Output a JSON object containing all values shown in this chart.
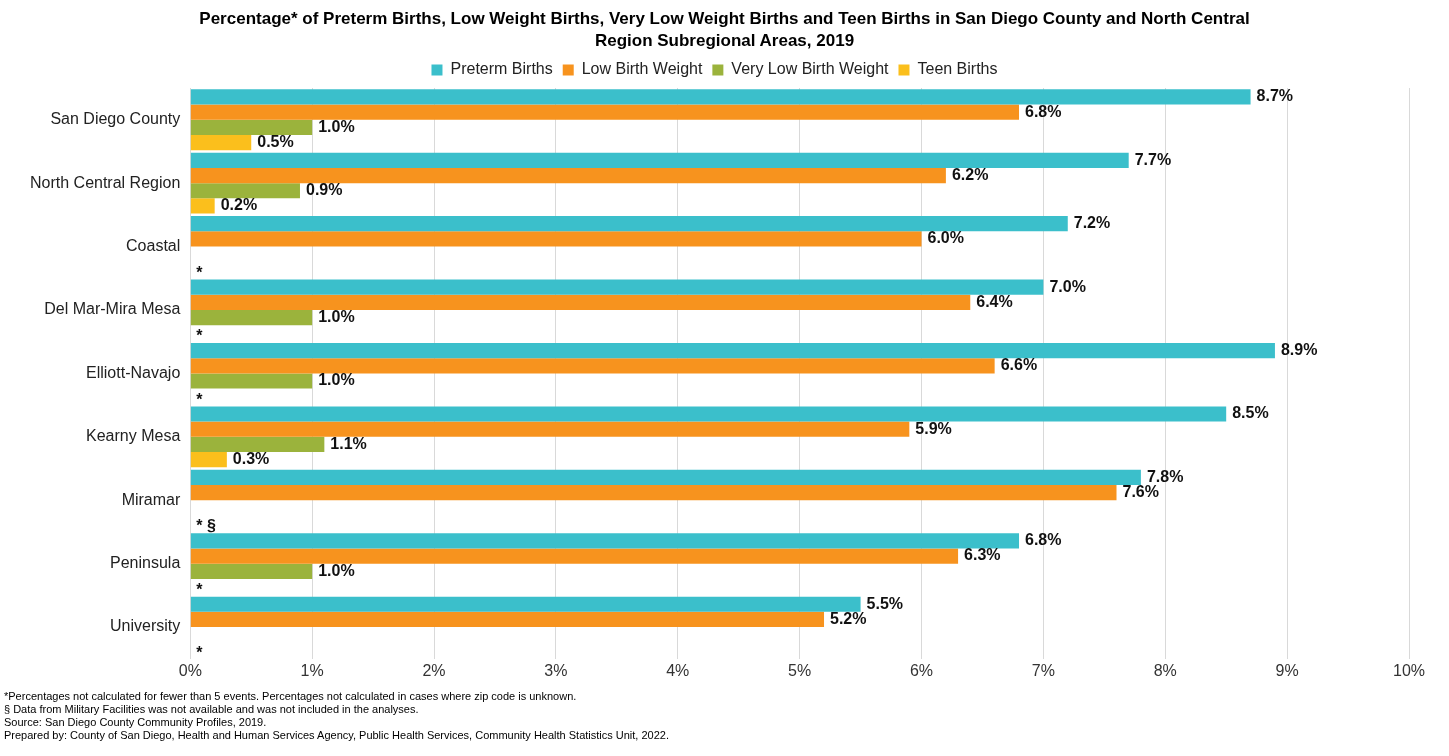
{
  "chart_data": {
    "type": "bar",
    "orientation": "horizontal",
    "title": "Percentage* of Preterm Births, Low Weight Births, Very Low Weight Births and Teen Births in San Diego County and North Central Region Subregional Areas, 2019",
    "categories": [
      "San Diego County",
      "North Central Region",
      "Coastal",
      "Del Mar-Mira Mesa",
      "Elliott-Navajo",
      "Kearny Mesa",
      "Miramar",
      "Peninsula",
      "University"
    ],
    "series": [
      {
        "name": "Preterm Births",
        "color": "#3bbfcb",
        "values": [
          8.7,
          7.7,
          7.2,
          7.0,
          8.9,
          8.5,
          7.8,
          6.8,
          5.5
        ],
        "value_labels": [
          "8.7%",
          "7.7%",
          "7.2%",
          "7.0%",
          "8.9%",
          "8.5%",
          "7.8%",
          "6.8%",
          "5.5%"
        ]
      },
      {
        "name": "Low Birth Weight",
        "color": "#f7931e",
        "values": [
          6.8,
          6.2,
          6.0,
          6.4,
          6.6,
          5.9,
          7.6,
          6.3,
          5.2
        ],
        "value_labels": [
          "6.8%",
          "6.2%",
          "6.0%",
          "6.4%",
          "6.6%",
          "5.9%",
          "7.6%",
          "6.3%",
          "5.2%"
        ]
      },
      {
        "name": "Very Low Birth Weight",
        "color": "#9bb33c",
        "values": [
          1.0,
          0.9,
          null,
          1.0,
          1.0,
          1.1,
          null,
          1.0,
          null
        ],
        "value_labels": [
          "1.0%",
          "0.9%",
          null,
          "1.0%",
          "1.0%",
          "1.1%",
          null,
          "1.0%",
          null
        ]
      },
      {
        "name": "Teen Births",
        "color": "#fbbf1c",
        "values": [
          0.5,
          0.2,
          null,
          null,
          null,
          0.3,
          null,
          null,
          null
        ],
        "value_labels": [
          "0.5%",
          "0.2%",
          "*",
          "*",
          "*",
          "0.3%",
          "* §",
          "*",
          "*"
        ]
      }
    ],
    "xlim": [
      0,
      10
    ],
    "xticks": [
      {
        "value": 0,
        "label": "0%"
      },
      {
        "value": 1,
        "label": "1%"
      },
      {
        "value": 2,
        "label": "2%"
      },
      {
        "value": 3,
        "label": "3%"
      },
      {
        "value": 4,
        "label": "4%"
      },
      {
        "value": 5,
        "label": "5%"
      },
      {
        "value": 6,
        "label": "6%"
      },
      {
        "value": 7,
        "label": "7%"
      },
      {
        "value": 8,
        "label": "8%"
      },
      {
        "value": 9,
        "label": "9%"
      },
      {
        "value": 10,
        "label": "10%"
      }
    ],
    "grid": "x",
    "legend": "top",
    "annotations": [
      "*Percentages not calculated for fewer than 5 events. Percentages not calculated in cases where zip code is unknown.",
      "§ Data from Military Facilities was not available and was not included in the analyses.",
      "Source: San Diego County Community Profiles, 2019.",
      "Prepared by: County of San Diego, Health and Human Services Agency, Public Health Services, Community Health Statistics Unit, 2022."
    ]
  }
}
